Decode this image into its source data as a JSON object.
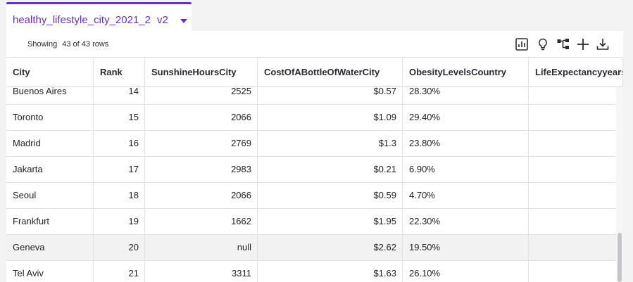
{
  "tab": {
    "title": "healthy_lifestyle_city_2021_2",
    "version": "v2"
  },
  "toolbar": {
    "showing_label": "Showing",
    "showing_count": "43 of 43 rows",
    "icons": [
      "chart-icon",
      "lightbulb-icon",
      "hierarchy-icon",
      "plus-icon",
      "download-icon"
    ]
  },
  "columns": [
    "City",
    "Rank",
    "SunshineHoursCity",
    "CostOfABottleOfWaterCity",
    "ObesityLevelsCountry",
    "LifeExpectancyyears"
  ],
  "rows": [
    {
      "city": "Buenos Aires",
      "rank": "14",
      "sunshine": "2525",
      "water": "$0.57",
      "obesity": "28.30%",
      "life": ""
    },
    {
      "city": "Toronto",
      "rank": "15",
      "sunshine": "2066",
      "water": "$1.09",
      "obesity": "29.40%",
      "life": ""
    },
    {
      "city": "Madrid",
      "rank": "16",
      "sunshine": "2769",
      "water": "$1.3",
      "obesity": "23.80%",
      "life": ""
    },
    {
      "city": "Jakarta",
      "rank": "17",
      "sunshine": "2983",
      "water": "$0.21",
      "obesity": "6.90%",
      "life": ""
    },
    {
      "city": "Seoul",
      "rank": "18",
      "sunshine": "2066",
      "water": "$0.59",
      "obesity": "4.70%",
      "life": ""
    },
    {
      "city": "Frankfurt",
      "rank": "19",
      "sunshine": "1662",
      "water": "$1.95",
      "obesity": "22.30%",
      "life": ""
    },
    {
      "city": "Geneva",
      "rank": "20",
      "sunshine": "null",
      "water": "$2.62",
      "obesity": "19.50%",
      "life": ""
    },
    {
      "city": "Tel Aviv",
      "rank": "21",
      "sunshine": "3311",
      "water": "$1.63",
      "obesity": "26.10%",
      "life": ""
    }
  ],
  "colors": {
    "accent": "#6a2fb8",
    "row_highlight": "#f2f2f3"
  }
}
